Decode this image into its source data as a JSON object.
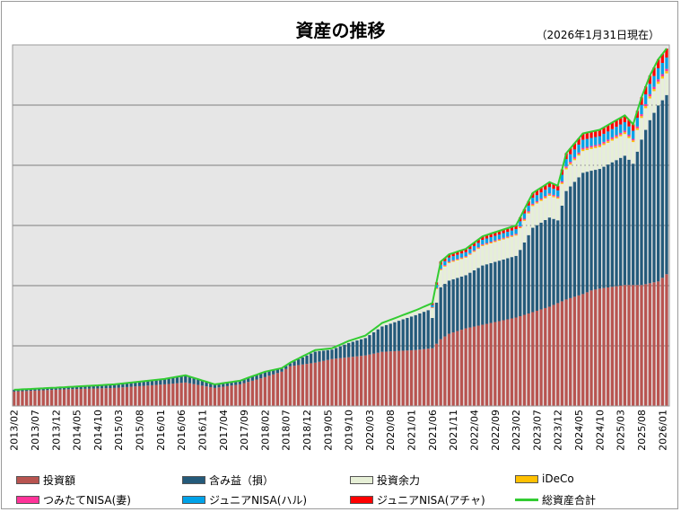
{
  "title": "資産の推移",
  "subtitle": "（2026年1月31日現在）",
  "chart_data": {
    "type": "bar",
    "stacked": true,
    "x_tick_labels": [
      "2013/02",
      "2013/07",
      "2013/12",
      "2014/05",
      "2014/10",
      "2015/03",
      "2015/08",
      "2016/01",
      "2016/06",
      "2016/11",
      "2017/04",
      "2017/09",
      "2018/02",
      "2018/07",
      "2018/12",
      "2019/05",
      "2019/10",
      "2020/03",
      "2020/08",
      "2021/01",
      "2021/06",
      "2021/11",
      "2022/04",
      "2022/09",
      "2023/02",
      "2023/07",
      "2023/12",
      "2024/05",
      "2024/10",
      "2025/03",
      "2025/08",
      "2026/01"
    ],
    "y_axis_labels_shown": false,
    "grid": true,
    "legend_position": "bottom",
    "anchors": {
      "comment_units": "relative units where full plot height = 100",
      "months": [
        0,
        12,
        24,
        36,
        41,
        48,
        54,
        60,
        64,
        66,
        72,
        76,
        80,
        84,
        88,
        96,
        100,
        102,
        104,
        108,
        112,
        116,
        120,
        124,
        128,
        130,
        132,
        136,
        138,
        140,
        146,
        148,
        150,
        152,
        154,
        156
      ],
      "total": [
        4.5,
        5.2,
        6.0,
        7.5,
        8.5,
        6.0,
        7.0,
        9.5,
        10.5,
        12.0,
        15.5,
        16.0,
        18.0,
        19.5,
        23.0,
        26.5,
        28.5,
        40.0,
        42.0,
        43.5,
        47.0,
        48.5,
        50.0,
        59.0,
        62.0,
        61.0,
        70.0,
        75.5,
        76.0,
        76.5,
        80.5,
        78.0,
        85.5,
        91.5,
        96.0,
        99.0
      ],
      "invest": [
        4.0,
        4.6,
        5.0,
        6.0,
        6.5,
        5.0,
        6.0,
        8.0,
        9.5,
        11.0,
        12.0,
        13.0,
        13.5,
        14.0,
        15.0,
        15.5,
        16.0,
        18.5,
        20.0,
        21.5,
        22.5,
        23.5,
        24.5,
        26.0,
        27.5,
        28.5,
        29.5,
        31.0,
        32.0,
        32.5,
        33.5,
        33.5,
        33.5,
        34.0,
        34.5,
        36.5
      ]
    },
    "series": [
      {
        "name": "投資額",
        "color": "#b85450"
      },
      {
        "name": "含み益（損）",
        "color": "#245a7a"
      },
      {
        "name": "投資余力",
        "color": "#e6efd6"
      },
      {
        "name": "iDeCo",
        "color": "#ffc000"
      },
      {
        "name": "つみたてNISA(妻)",
        "color": "#ff3399"
      },
      {
        "name": "ジュニアNISA(ハル)",
        "color": "#00a2e8"
      },
      {
        "name": "ジュニアNISA(アチャ)",
        "color": "#ff0000"
      },
      {
        "name": "総資産合計",
        "color": "#33cc33",
        "line": true
      }
    ]
  }
}
